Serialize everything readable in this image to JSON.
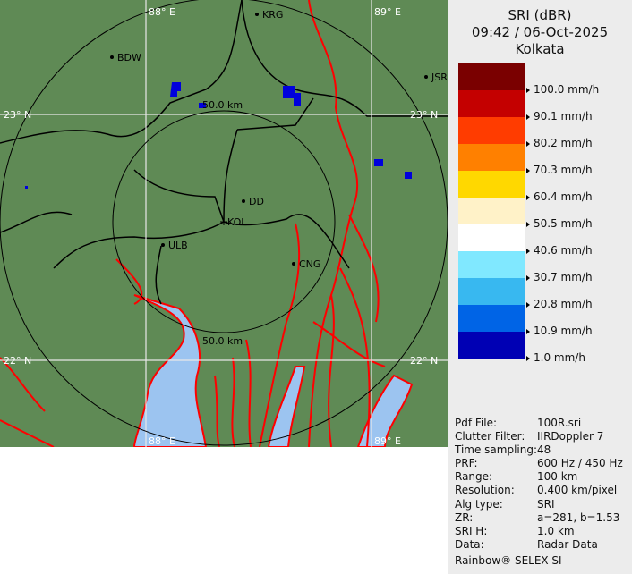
{
  "header": {
    "product": "SRI (dBR)",
    "datetime": "09:42 / 06-Oct-2025",
    "site": "Kolkata"
  },
  "legend": {
    "colors": [
      "#7a0000",
      "#c40000",
      "#ff3c00",
      "#ff8000",
      "#ffd800",
      "#fff2c8",
      "#ffffff",
      "#80e8ff",
      "#38b8f0",
      "#0064e6",
      "#0000b4"
    ],
    "labels": [
      "100.0 mm/h",
      "90.1 mm/h",
      "80.2 mm/h",
      "70.3 mm/h",
      "60.4 mm/h",
      "50.5 mm/h",
      "40.6 mm/h",
      "30.7 mm/h",
      "20.8 mm/h",
      "10.9 mm/h",
      "1.0 mm/h"
    ]
  },
  "info": [
    {
      "key": "Pdf File:",
      "value": "100R.sri"
    },
    {
      "key": "Clutter Filter:",
      "value": "IIRDoppler 7"
    },
    {
      "key": "Time sampling:",
      "value": "48"
    },
    {
      "key": "PRF:",
      "value": "600 Hz / 450 Hz"
    },
    {
      "key": "Range:",
      "value": "100 km"
    },
    {
      "key": "Resolution:",
      "value": "0.400 km/pixel"
    },
    {
      "key": "Alg type:",
      "value": "SRI"
    },
    {
      "key": "ZR:",
      "value": "a=281, b=1.53"
    },
    {
      "key": "SRI H:",
      "value": "1.0 km"
    },
    {
      "key": "Data:",
      "value": "Radar Data"
    }
  ],
  "footer": "Rainbow® SELEX-SI",
  "map": {
    "colors": {
      "land": "#5f8a55",
      "water": "#9cc4f0",
      "rivers": "#ff0000",
      "rain": "#0000dd"
    },
    "range_rings": [
      "50.0 km",
      "50.0 km"
    ],
    "grid": {
      "lon": [
        "88° E",
        "89° E",
        "88° E",
        "89° E"
      ],
      "lat": [
        "23° N",
        "23° N",
        "22° N",
        "22° N"
      ]
    },
    "places": [
      "BDW",
      "KRG",
      "JSR",
      "DD",
      "KOL",
      "ULB",
      "CNG"
    ]
  }
}
